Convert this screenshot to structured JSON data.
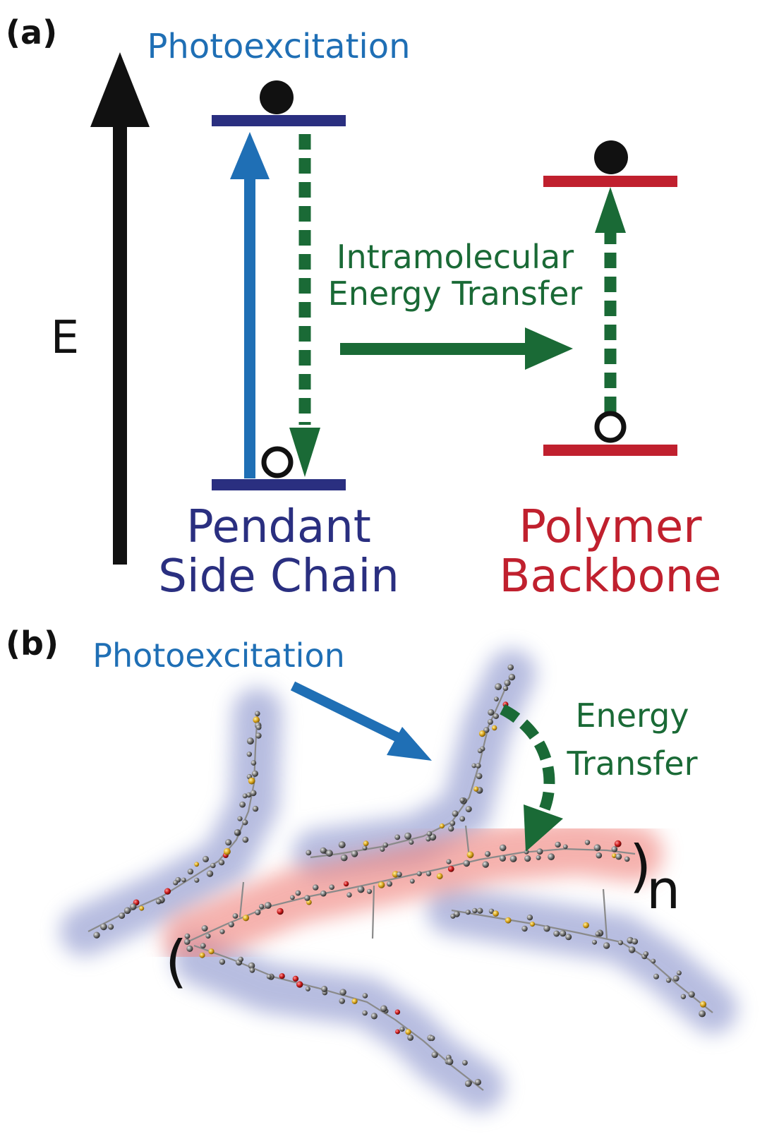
{
  "panel_a": {
    "label": "(a)",
    "photoexcitation": "Photoexcitation",
    "energy_axis": "E",
    "transfer_line1": "Intramolecular",
    "transfer_line2": "Energy Transfer",
    "side_chain_line1": "Pendant",
    "side_chain_line2": "Side Chain",
    "backbone_line1": "Polymer",
    "backbone_line2": "Backbone"
  },
  "panel_b": {
    "label": "(b)",
    "photoexcitation": "Photoexcitation",
    "transfer_line1": "Energy",
    "transfer_line2": "Transfer",
    "repeat_subscript": "n",
    "bracket_open": "(",
    "bracket_close": ")"
  },
  "colors": {
    "blue": "#1f6fb5",
    "navy": "#2a2f80",
    "green": "#1a6a36",
    "red": "#c0202e",
    "black": "#111111"
  }
}
